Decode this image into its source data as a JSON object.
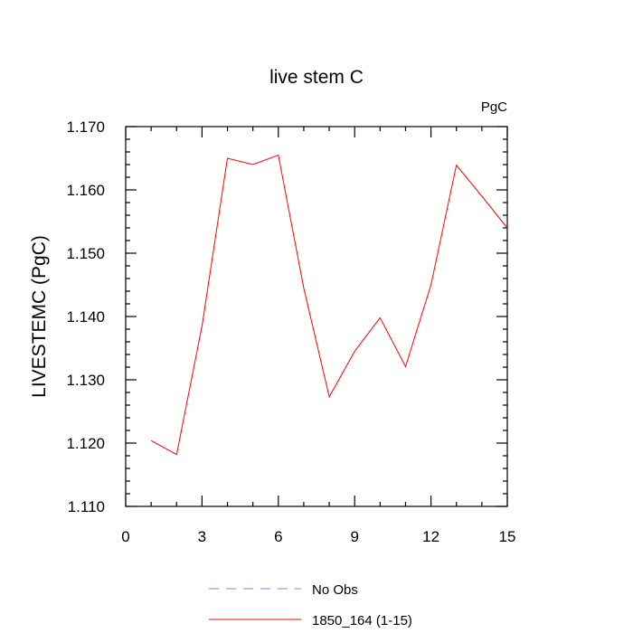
{
  "chart_data": {
    "type": "line",
    "title": "live stem C",
    "units_label": "PgC",
    "xlabel": "",
    "ylabel": "LIVESTEMC  (PgC)",
    "xlim": [
      0,
      15
    ],
    "ylim": [
      1.11,
      1.17
    ],
    "x_ticks": [
      0,
      3,
      6,
      9,
      12,
      15
    ],
    "x_tick_labels": [
      "0",
      "3",
      "6",
      "9",
      "12",
      "15"
    ],
    "y_ticks": [
      1.11,
      1.12,
      1.13,
      1.14,
      1.15,
      1.16,
      1.17
    ],
    "y_tick_labels": [
      "1.110",
      "1.120",
      "1.130",
      "1.140",
      "1.150",
      "1.160",
      "1.170"
    ],
    "grid": false,
    "legend_position": "bottom",
    "series": [
      {
        "name": "1850_164 (1-15)",
        "color": "#ff0000",
        "dash": "solid",
        "x": [
          1,
          2,
          3,
          4,
          5,
          6,
          7,
          8,
          9,
          10,
          11,
          12,
          13,
          14,
          15
        ],
        "y": [
          1.1204,
          1.1182,
          1.1385,
          1.165,
          1.164,
          1.1655,
          1.1445,
          1.1273,
          1.1345,
          1.1398,
          1.1321,
          1.145,
          1.1639,
          1.159,
          1.154
        ]
      }
    ],
    "legend": [
      {
        "label": "No Obs",
        "color": "#8080ff",
        "dash": "dashed"
      },
      {
        "label": "1850_164 (1-15)",
        "color": "#ff0000",
        "dash": "solid"
      }
    ]
  }
}
